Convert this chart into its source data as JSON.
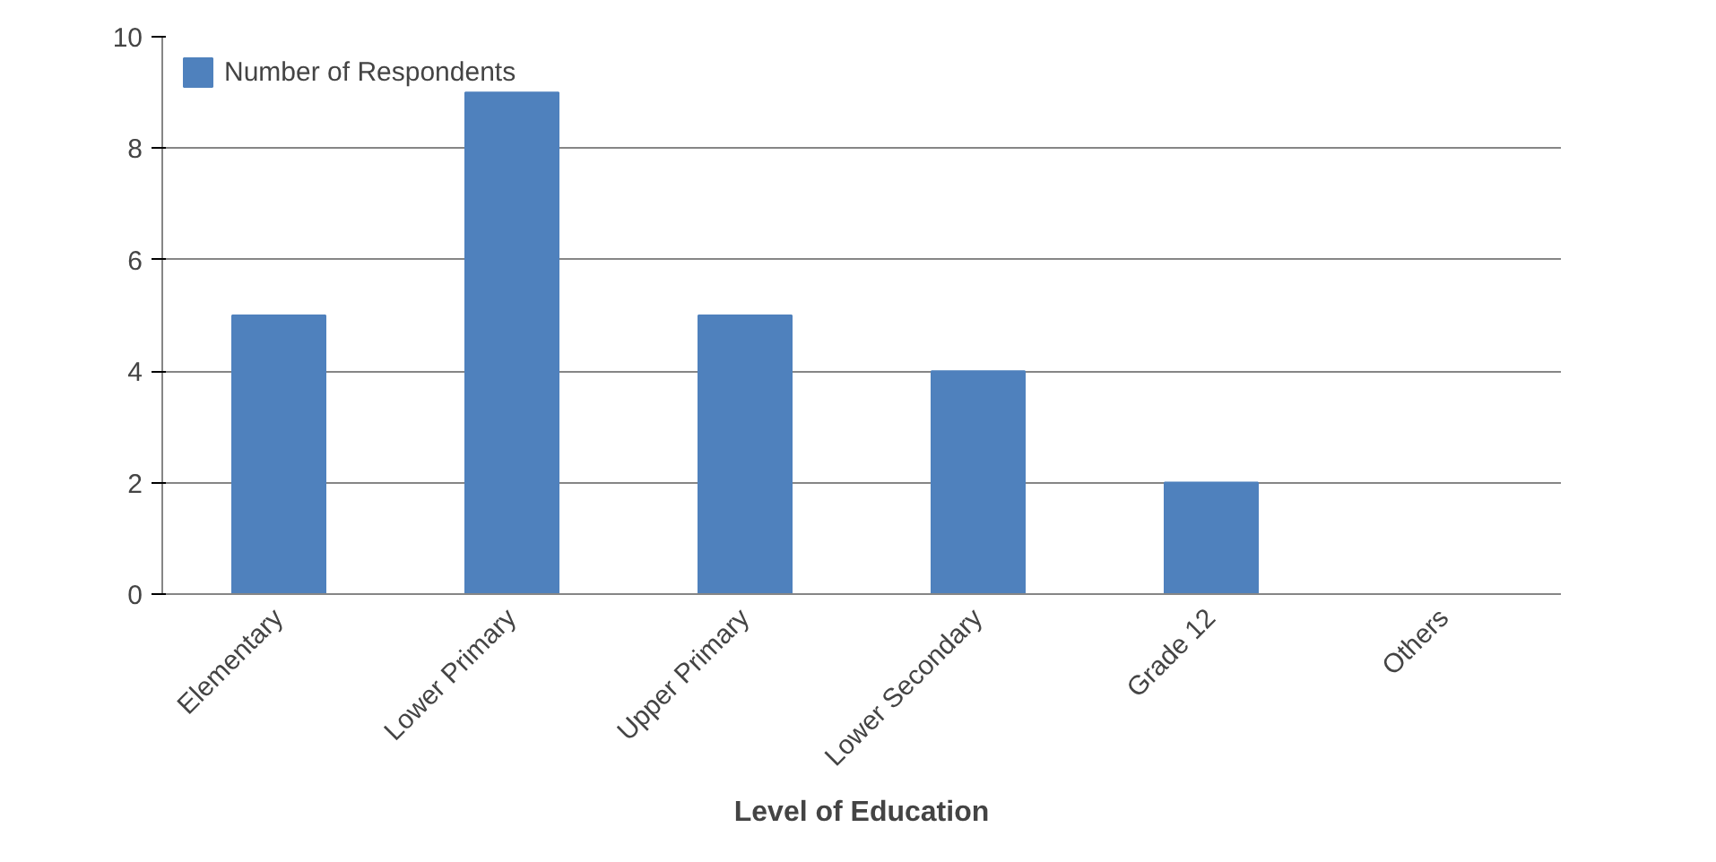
{
  "chart_data": {
    "type": "bar",
    "xlabel": "Level of Education",
    "categories": [
      "Elementary",
      "Lower Primary",
      "Upper Primary",
      "Lower Secondary",
      "Grade 12",
      "Others"
    ],
    "series": [
      {
        "name": "Number of Respondents",
        "color": "#4f81bd",
        "values": [
          5,
          9,
          5,
          4,
          2,
          0
        ]
      }
    ],
    "ylim": [
      0,
      10
    ],
    "yticks": [
      0,
      2,
      4,
      6,
      8,
      10
    ],
    "grid": "y",
    "legend": "top left"
  }
}
